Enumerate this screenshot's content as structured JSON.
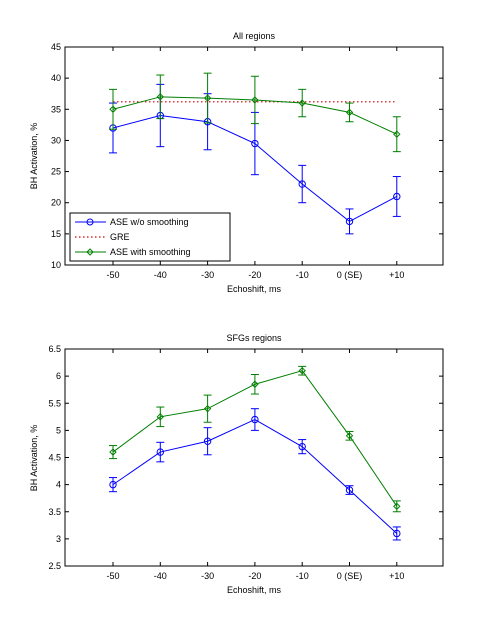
{
  "colors": {
    "blue": "#0000ff",
    "red": "#cc0000",
    "green": "#007f00",
    "axis": "#000000",
    "background": "#ffffff"
  },
  "chart_data": [
    {
      "type": "line",
      "title": "All regions",
      "xlabel": "Echoshift, ms",
      "ylabel": "BH Activation, %",
      "categories": [
        "-50",
        "-40",
        "-30",
        "-20",
        "-10",
        "0 (SE)",
        "+10"
      ],
      "ylim": [
        10,
        45
      ],
      "yticks": [
        "10",
        "15",
        "20",
        "25",
        "30",
        "35",
        "40",
        "45"
      ],
      "legend_position": "bottom-left",
      "grid": false,
      "series": [
        {
          "name": "ASE w/o smoothing",
          "color": "#0000ff",
          "marker": "circle",
          "values": [
            32,
            34,
            33,
            29.5,
            23,
            17,
            21
          ],
          "errors": [
            4,
            5,
            4.5,
            5,
            3,
            2,
            3.2
          ]
        },
        {
          "name": "GRE",
          "color": "#cc0000",
          "style": "dotted",
          "values": [
            36.2,
            36.2,
            36.2,
            36.2,
            36.2,
            36.2,
            36.2
          ]
        },
        {
          "name": "ASE with smoothing",
          "color": "#007f00",
          "marker": "diamond",
          "values": [
            35,
            37,
            36.8,
            36.5,
            36,
            34.5,
            31
          ],
          "errors": [
            3.2,
            3.5,
            4,
            3.8,
            2.2,
            1.5,
            2.8
          ]
        }
      ]
    },
    {
      "type": "line",
      "title": "SFGs regions",
      "xlabel": "Echoshift, ms",
      "ylabel": "BH Activation, %",
      "categories": [
        "-50",
        "-40",
        "-30",
        "-20",
        "-10",
        "0 (SE)",
        "+10"
      ],
      "ylim": [
        2.5,
        6.5
      ],
      "yticks": [
        "2.5",
        "3",
        "3.5",
        "4",
        "4.5",
        "5",
        "5.5",
        "6",
        "6.5"
      ],
      "grid": false,
      "series": [
        {
          "name": "ASE w/o smoothing",
          "color": "#0000ff",
          "marker": "circle",
          "values": [
            4.0,
            4.6,
            4.8,
            5.2,
            4.7,
            3.9,
            3.1
          ],
          "errors": [
            0.13,
            0.18,
            0.25,
            0.2,
            0.13,
            0.08,
            0.12
          ]
        },
        {
          "name": "ASE with smoothing",
          "color": "#007f00",
          "marker": "diamond",
          "values": [
            4.6,
            5.25,
            5.4,
            5.85,
            6.1,
            4.9,
            3.6
          ],
          "errors": [
            0.12,
            0.18,
            0.25,
            0.18,
            0.08,
            0.08,
            0.1
          ]
        }
      ]
    }
  ]
}
